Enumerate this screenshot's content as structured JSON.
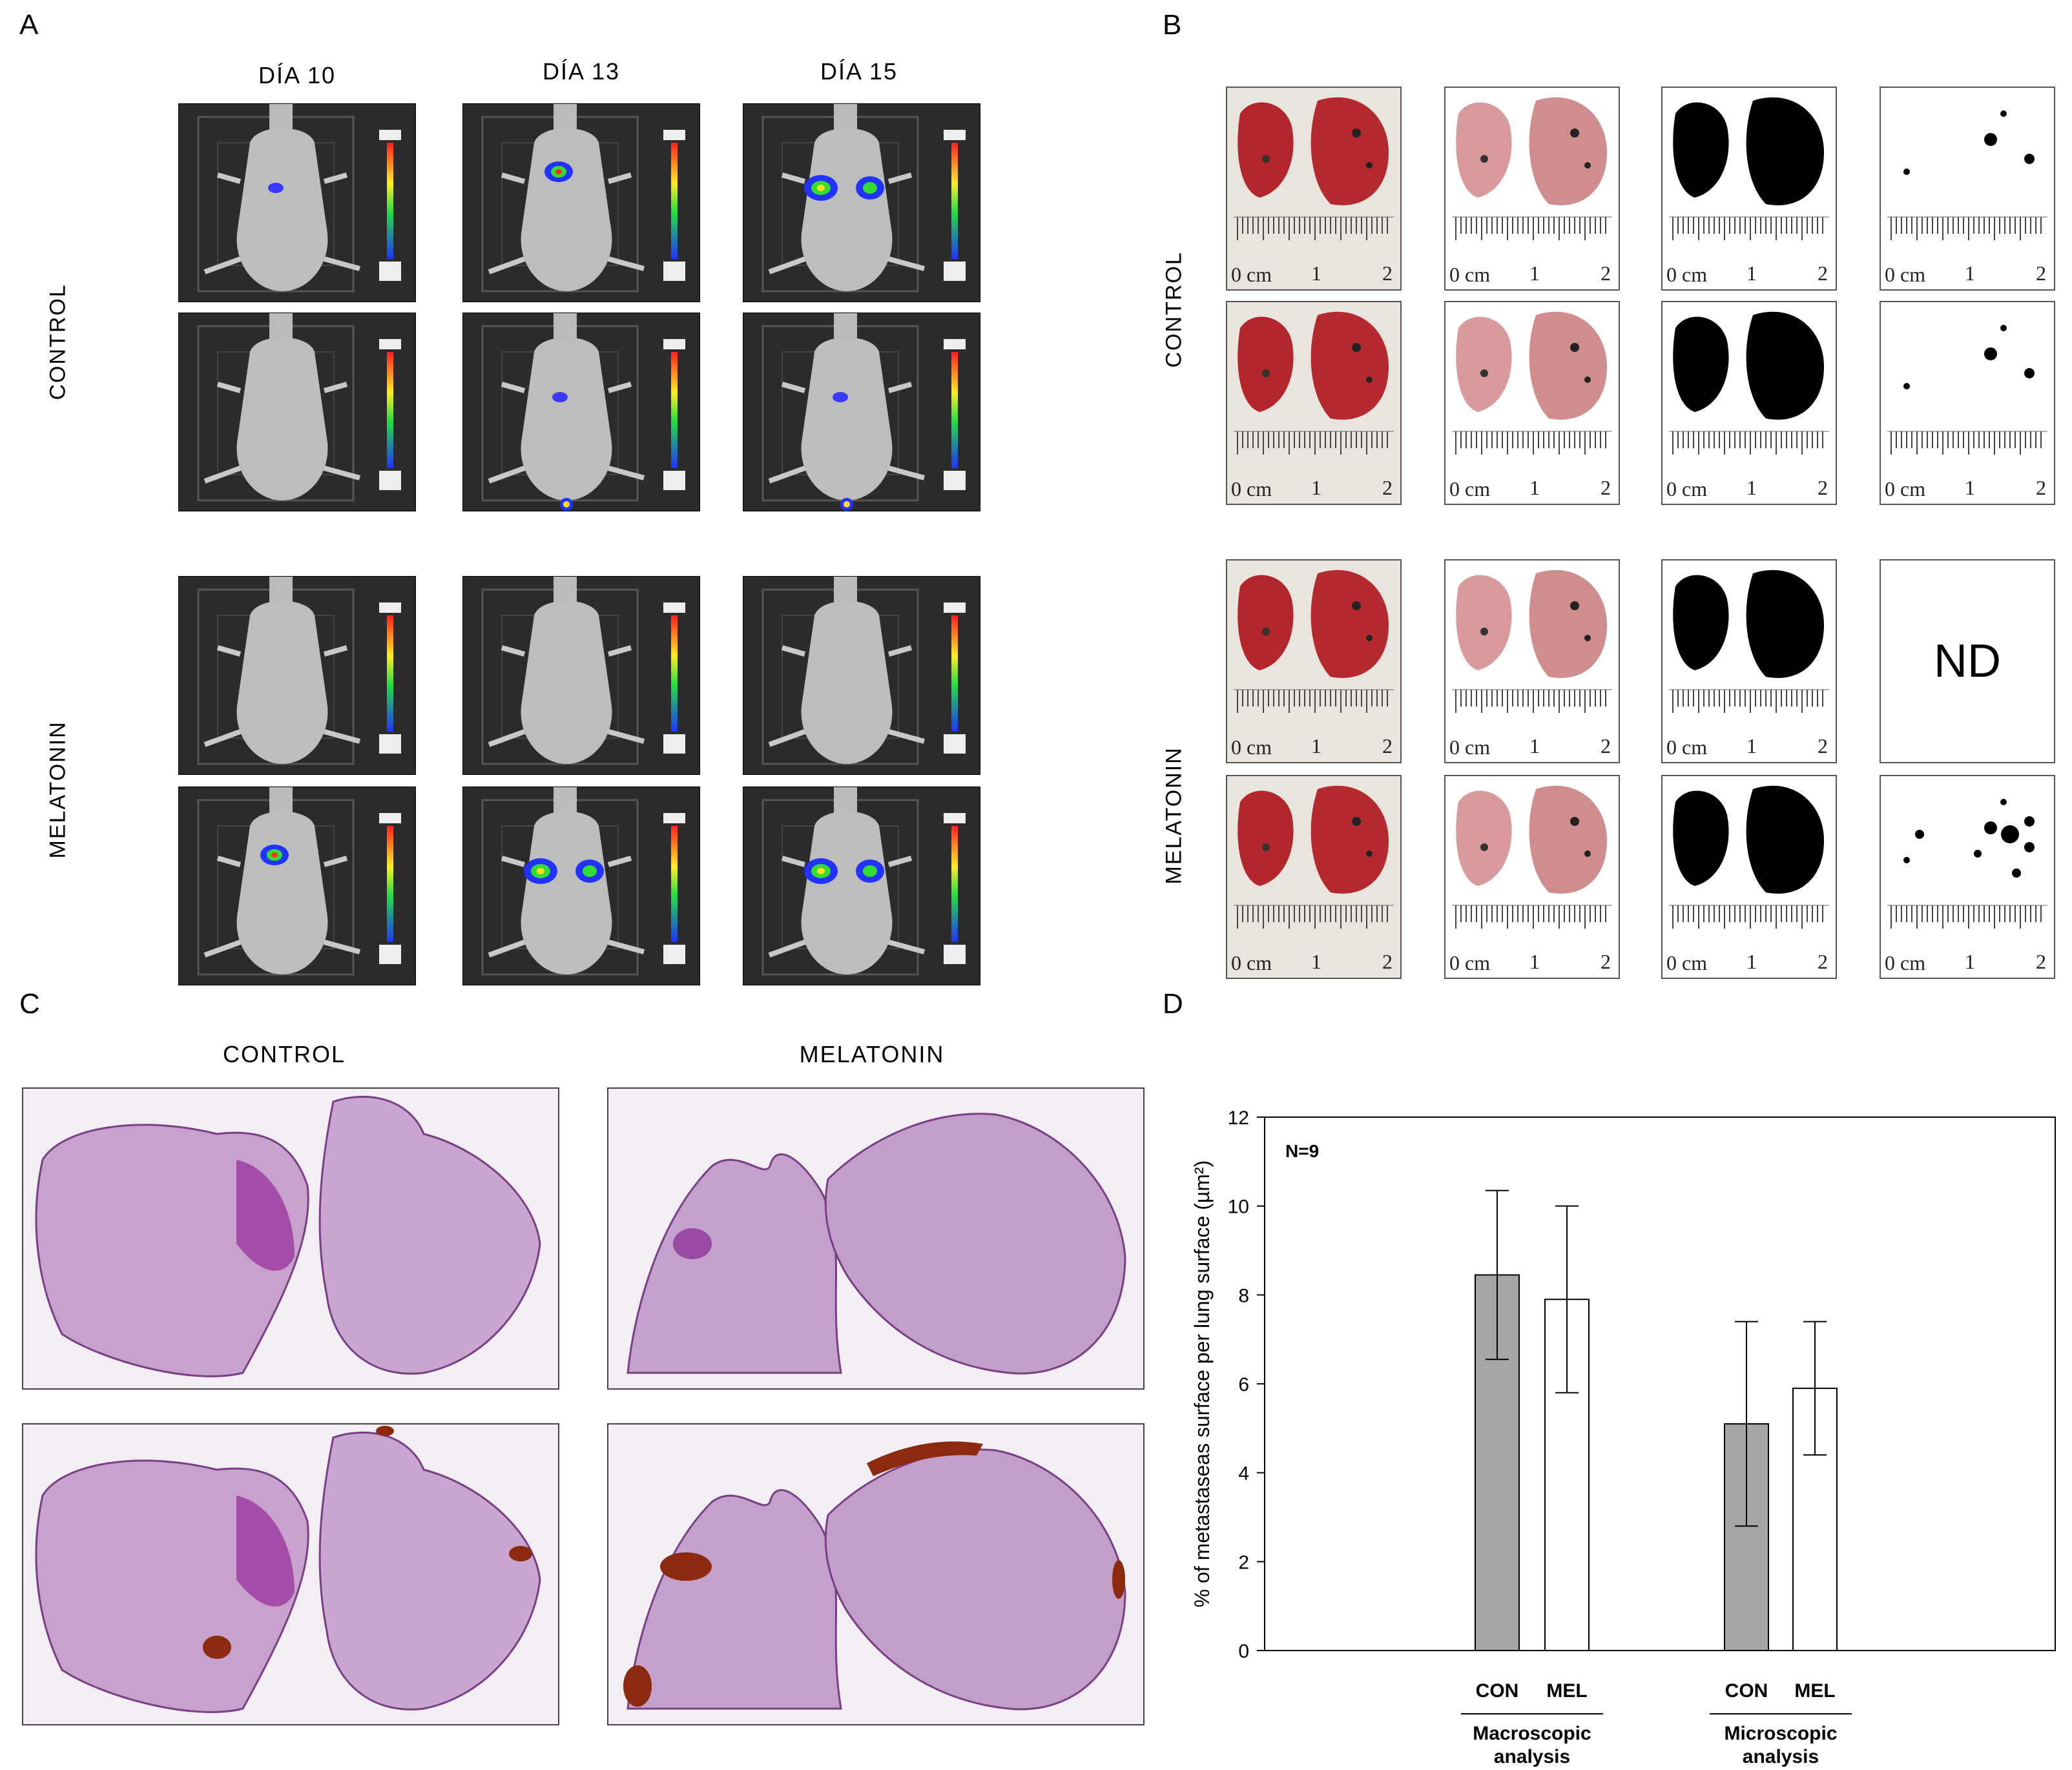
{
  "panels": {
    "a": "A",
    "b": "B",
    "c": "C",
    "d": "D"
  },
  "panel_a": {
    "days": [
      "DÍA 10",
      "DÍA 13",
      "DÍA 15"
    ],
    "groups": [
      "CONTROL",
      "MELATONIN"
    ]
  },
  "panel_b": {
    "groups": [
      "CONTROL",
      "MELATONIN"
    ],
    "ruler": {
      "zero": "0 cm",
      "one": "1",
      "two": "2"
    },
    "nd_label": "ND"
  },
  "panel_c": {
    "columns": [
      "CONTROL",
      "MELATONIN"
    ]
  },
  "chart_data": {
    "type": "bar",
    "ylabel": "% of metastaseas surface per lung surface (µm²)",
    "ylim": [
      0,
      12
    ],
    "yticks": [
      0,
      2,
      4,
      6,
      8,
      10,
      12
    ],
    "annotation": "N=9",
    "groups": [
      {
        "label": "Macroscopic analysis",
        "label_lines": [
          "Macroscopic",
          "analysis"
        ]
      },
      {
        "label": "Microscopic analysis",
        "label_lines": [
          "Microscopic",
          "analysis"
        ]
      }
    ],
    "categories": [
      "CON",
      "MEL",
      "CON",
      "MEL"
    ],
    "values": [
      8.45,
      7.9,
      5.1,
      5.9
    ],
    "errors": [
      1.9,
      2.1,
      2.3,
      1.5
    ],
    "fills": [
      "#a6a6a6",
      "#ffffff",
      "#a6a6a6",
      "#ffffff"
    ],
    "grid": false
  },
  "colors": {
    "bar_con": "#a6a6a6",
    "bar_mel": "#ffffff",
    "lung_red": "#b3262b",
    "lung_pink": "#d89a9a",
    "histo": "#9b5aa6",
    "mets": "#8b2a0f"
  }
}
